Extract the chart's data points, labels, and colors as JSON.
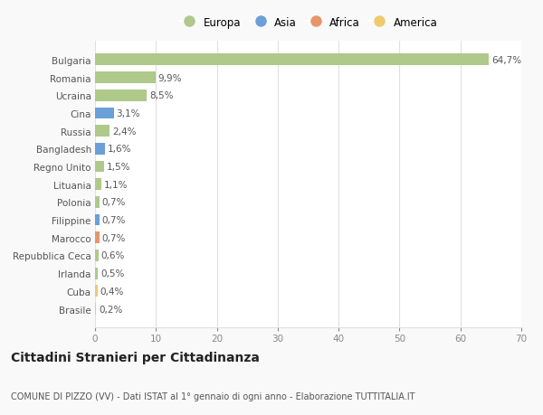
{
  "categories": [
    "Bulgaria",
    "Romania",
    "Ucraina",
    "Cina",
    "Russia",
    "Bangladesh",
    "Regno Unito",
    "Lituania",
    "Polonia",
    "Filippine",
    "Marocco",
    "Repubblica Ceca",
    "Irlanda",
    "Cuba",
    "Brasile"
  ],
  "values": [
    64.7,
    9.9,
    8.5,
    3.1,
    2.4,
    1.6,
    1.5,
    1.1,
    0.7,
    0.7,
    0.7,
    0.6,
    0.5,
    0.4,
    0.2
  ],
  "labels": [
    "64,7%",
    "9,9%",
    "8,5%",
    "3,1%",
    "2,4%",
    "1,6%",
    "1,5%",
    "1,1%",
    "0,7%",
    "0,7%",
    "0,7%",
    "0,6%",
    "0,5%",
    "0,4%",
    "0,2%"
  ],
  "colors": [
    "#aec98a",
    "#aec98a",
    "#aec98a",
    "#6a9fd8",
    "#aec98a",
    "#6a9fd8",
    "#aec98a",
    "#aec98a",
    "#aec98a",
    "#6a9fd8",
    "#e8956d",
    "#aec98a",
    "#aec98a",
    "#f0c96e",
    "#f0c96e"
  ],
  "legend_labels": [
    "Europa",
    "Asia",
    "Africa",
    "America"
  ],
  "legend_colors": [
    "#aec98a",
    "#6a9fd8",
    "#e8956d",
    "#f0c96e"
  ],
  "title": "Cittadini Stranieri per Cittadinanza",
  "subtitle": "COMUNE DI PIZZO (VV) - Dati ISTAT al 1° gennaio di ogni anno - Elaborazione TUTTITALIA.IT",
  "xlim": [
    0,
    70
  ],
  "xticks": [
    0,
    10,
    20,
    30,
    40,
    50,
    60,
    70
  ],
  "background_color": "#f9f9f9",
  "plot_bg_color": "#ffffff",
  "grid_color": "#e0e0e0",
  "label_fontsize": 7.5,
  "tick_fontsize": 7.5,
  "title_fontsize": 10,
  "subtitle_fontsize": 7
}
